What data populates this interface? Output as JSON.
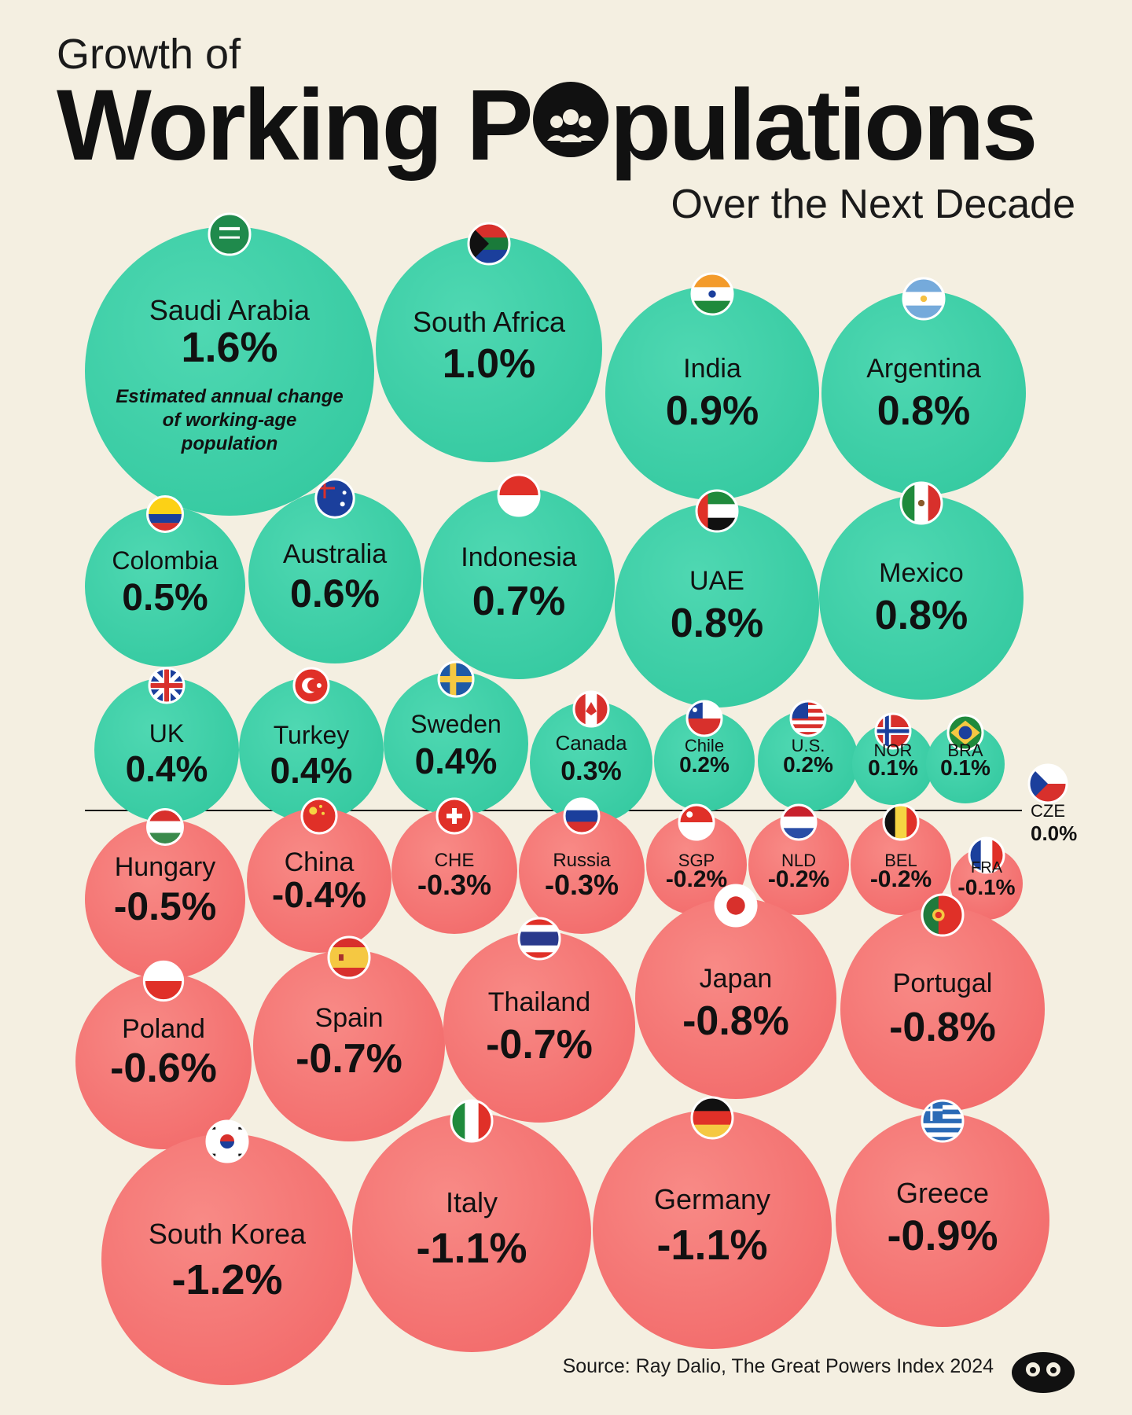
{
  "header": {
    "title_top": "Growth of",
    "title_part1": "Working P",
    "title_part2": "pulations",
    "subtitle": "Over the Next Decade"
  },
  "source": "Source: Ray Dalio, The Great Powers Index 2024",
  "note": "Estimated annual change of working-age population",
  "colors": {
    "positive": "#34c9a0",
    "negative": "#f26a6a",
    "background": "#f4efe1"
  },
  "chart_data": {
    "type": "bubble",
    "title": "Growth of Working Populations Over the Next Decade",
    "unit": "%",
    "series": [
      {
        "label": "Saudi Arabia",
        "value": 1.6,
        "value_label": "1.6%"
      },
      {
        "label": "South Africa",
        "value": 1.0,
        "value_label": "1.0%"
      },
      {
        "label": "India",
        "value": 0.9,
        "value_label": "0.9%"
      },
      {
        "label": "Argentina",
        "value": 0.8,
        "value_label": "0.8%"
      },
      {
        "label": "Colombia",
        "value": 0.5,
        "value_label": "0.5%"
      },
      {
        "label": "Australia",
        "value": 0.6,
        "value_label": "0.6%"
      },
      {
        "label": "Indonesia",
        "value": 0.7,
        "value_label": "0.7%"
      },
      {
        "label": "UAE",
        "value": 0.8,
        "value_label": "0.8%"
      },
      {
        "label": "Mexico",
        "value": 0.8,
        "value_label": "0.8%"
      },
      {
        "label": "UK",
        "value": 0.4,
        "value_label": "0.4%"
      },
      {
        "label": "Turkey",
        "value": 0.4,
        "value_label": "0.4%"
      },
      {
        "label": "Sweden",
        "value": 0.4,
        "value_label": "0.4%"
      },
      {
        "label": "Canada",
        "value": 0.3,
        "value_label": "0.3%"
      },
      {
        "label": "Chile",
        "value": 0.2,
        "value_label": "0.2%"
      },
      {
        "label": "U.S.",
        "value": 0.2,
        "value_label": "0.2%"
      },
      {
        "label": "NOR",
        "value": 0.1,
        "value_label": "0.1%"
      },
      {
        "label": "BRA",
        "value": 0.1,
        "value_label": "0.1%"
      },
      {
        "label": "CZE",
        "value": 0.0,
        "value_label": "0.0%"
      },
      {
        "label": "Hungary",
        "value": -0.5,
        "value_label": "-0.5%"
      },
      {
        "label": "China",
        "value": -0.4,
        "value_label": "-0.4%"
      },
      {
        "label": "CHE",
        "value": -0.3,
        "value_label": "-0.3%"
      },
      {
        "label": "Russia",
        "value": -0.3,
        "value_label": "-0.3%"
      },
      {
        "label": "SGP",
        "value": -0.2,
        "value_label": "-0.2%"
      },
      {
        "label": "NLD",
        "value": -0.2,
        "value_label": "-0.2%"
      },
      {
        "label": "BEL",
        "value": -0.2,
        "value_label": "-0.2%"
      },
      {
        "label": "FRA",
        "value": -0.1,
        "value_label": "-0.1%"
      },
      {
        "label": "Poland",
        "value": -0.6,
        "value_label": "-0.6%"
      },
      {
        "label": "Spain",
        "value": -0.7,
        "value_label": "-0.7%"
      },
      {
        "label": "Thailand",
        "value": -0.7,
        "value_label": "-0.7%"
      },
      {
        "label": "Japan",
        "value": -0.8,
        "value_label": "-0.8%"
      },
      {
        "label": "Portugal",
        "value": -0.8,
        "value_label": "-0.8%"
      },
      {
        "label": "South Korea",
        "value": -1.2,
        "value_label": "-1.2%"
      },
      {
        "label": "Italy",
        "value": -1.1,
        "value_label": "-1.1%"
      },
      {
        "label": "Germany",
        "value": -1.1,
        "value_label": "-1.1%"
      },
      {
        "label": "Greece",
        "value": -0.9,
        "value_label": "-0.9%"
      }
    ]
  }
}
